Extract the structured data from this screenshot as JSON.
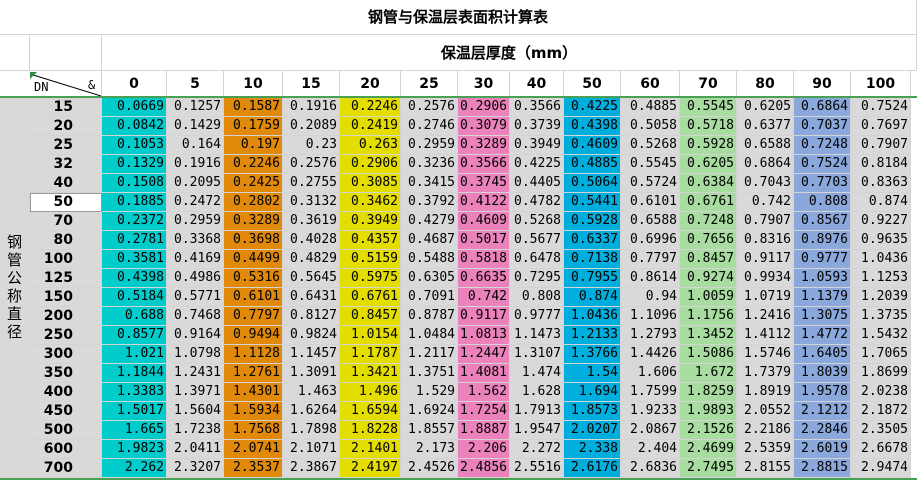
{
  "title": "钢管与保温层表面积计算表",
  "thickness_header": "保温层厚度（mm）",
  "corner": {
    "left_label": "DN",
    "right_label": "&"
  },
  "row_group_label": "钢管公称直径",
  "columns": [
    "0",
    "5",
    "10",
    "15",
    "20",
    "25",
    "30",
    "40",
    "50",
    "60",
    "70",
    "80",
    "90",
    "100"
  ],
  "column_colors": [
    "#00cccc",
    "#d9d9d9",
    "#e0890a",
    "#d9d9d9",
    "#e3dd00",
    "#d9d9d9",
    "#ec82bc",
    "#d9d9d9",
    "#00aedd",
    "#d9d9d9",
    "#a8dca0",
    "#d9d9d9",
    "#8aa8dc",
    "#d9d9d9"
  ],
  "selected_row": "50",
  "rows": [
    {
      "dn": "15",
      "values": [
        "0.0669",
        "0.1257",
        "0.1587",
        "0.1916",
        "0.2246",
        "0.2576",
        "0.2906",
        "0.3566",
        "0.4225",
        "0.4885",
        "0.5545",
        "0.6205",
        "0.6864",
        "0.7524"
      ]
    },
    {
      "dn": "20",
      "values": [
        "0.0842",
        "0.1429",
        "0.1759",
        "0.2089",
        "0.2419",
        "0.2746",
        "0.3079",
        "0.3739",
        "0.4398",
        "0.5058",
        "0.5718",
        "0.6377",
        "0.7037",
        "0.7697"
      ]
    },
    {
      "dn": "25",
      "values": [
        "0.1053",
        "0.164",
        "0.197",
        "0.23",
        "0.263",
        "0.2959",
        "0.3289",
        "0.3949",
        "0.4609",
        "0.5268",
        "0.5928",
        "0.6588",
        "0.7248",
        "0.7907"
      ]
    },
    {
      "dn": "32",
      "values": [
        "0.1329",
        "0.1916",
        "0.2246",
        "0.2576",
        "0.2906",
        "0.3236",
        "0.3566",
        "0.4225",
        "0.4885",
        "0.5545",
        "0.6205",
        "0.6864",
        "0.7524",
        "0.8184"
      ]
    },
    {
      "dn": "40",
      "values": [
        "0.1508",
        "0.2095",
        "0.2425",
        "0.2755",
        "0.3085",
        "0.3415",
        "0.3745",
        "0.4405",
        "0.5064",
        "0.5724",
        "0.6384",
        "0.7043",
        "0.7703",
        "0.8363"
      ]
    },
    {
      "dn": "50",
      "values": [
        "0.1885",
        "0.2472",
        "0.2802",
        "0.3132",
        "0.3462",
        "0.3792",
        "0.4122",
        "0.4782",
        "0.5441",
        "0.6101",
        "0.6761",
        "0.742",
        "0.808",
        "0.874"
      ]
    },
    {
      "dn": "70",
      "values": [
        "0.2372",
        "0.2959",
        "0.3289",
        "0.3619",
        "0.3949",
        "0.4279",
        "0.4609",
        "0.5268",
        "0.5928",
        "0.6588",
        "0.7248",
        "0.7907",
        "0.8567",
        "0.9227"
      ]
    },
    {
      "dn": "80",
      "values": [
        "0.2781",
        "0.3368",
        "0.3698",
        "0.4028",
        "0.4357",
        "0.4687",
        "0.5017",
        "0.5677",
        "0.6337",
        "0.6996",
        "0.7656",
        "0.8316",
        "0.8976",
        "0.9635"
      ]
    },
    {
      "dn": "100",
      "values": [
        "0.3581",
        "0.4169",
        "0.4499",
        "0.4829",
        "0.5159",
        "0.5488",
        "0.5818",
        "0.6478",
        "0.7138",
        "0.7797",
        "0.8457",
        "0.9117",
        "0.9777",
        "1.0436"
      ]
    },
    {
      "dn": "125",
      "values": [
        "0.4398",
        "0.4986",
        "0.5316",
        "0.5645",
        "0.5975",
        "0.6305",
        "0.6635",
        "0.7295",
        "0.7955",
        "0.8614",
        "0.9274",
        "0.9934",
        "1.0593",
        "1.1253"
      ]
    },
    {
      "dn": "150",
      "values": [
        "0.5184",
        "0.5771",
        "0.6101",
        "0.6431",
        "0.6761",
        "0.7091",
        "0.742",
        "0.808",
        "0.874",
        "0.94",
        "1.0059",
        "1.0719",
        "1.1379",
        "1.2039"
      ]
    },
    {
      "dn": "200",
      "values": [
        "0.688",
        "0.7468",
        "0.7797",
        "0.8127",
        "0.8457",
        "0.8787",
        "0.9117",
        "0.9777",
        "1.0436",
        "1.1096",
        "1.1756",
        "1.2416",
        "1.3075",
        "1.3735"
      ]
    },
    {
      "dn": "250",
      "values": [
        "0.8577",
        "0.9164",
        "0.9494",
        "0.9824",
        "1.0154",
        "1.0484",
        "1.0813",
        "1.1473",
        "1.2133",
        "1.2793",
        "1.3452",
        "1.4112",
        "1.4772",
        "1.5432"
      ]
    },
    {
      "dn": "300",
      "values": [
        "1.021",
        "1.0798",
        "1.1128",
        "1.1457",
        "1.1787",
        "1.2117",
        "1.2447",
        "1.3107",
        "1.3766",
        "1.4426",
        "1.5086",
        "1.5746",
        "1.6405",
        "1.7065"
      ]
    },
    {
      "dn": "350",
      "values": [
        "1.1844",
        "1.2431",
        "1.2761",
        "1.3091",
        "1.3421",
        "1.3751",
        "1.4081",
        "1.474",
        "1.54",
        "1.606",
        "1.672",
        "1.7379",
        "1.8039",
        "1.8699"
      ]
    },
    {
      "dn": "400",
      "values": [
        "1.3383",
        "1.3971",
        "1.4301",
        "1.463",
        "1.496",
        "1.529",
        "1.562",
        "1.628",
        "1.694",
        "1.7599",
        "1.8259",
        "1.8919",
        "1.9578",
        "2.0238"
      ]
    },
    {
      "dn": "450",
      "values": [
        "1.5017",
        "1.5604",
        "1.5934",
        "1.6264",
        "1.6594",
        "1.6924",
        "1.7254",
        "1.7913",
        "1.8573",
        "1.9233",
        "1.9893",
        "2.0552",
        "2.1212",
        "2.1872"
      ]
    },
    {
      "dn": "500",
      "values": [
        "1.665",
        "1.7238",
        "1.7568",
        "1.7898",
        "1.8228",
        "1.8557",
        "1.8887",
        "1.9547",
        "2.0207",
        "2.0867",
        "2.1526",
        "2.2186",
        "2.2846",
        "2.3505"
      ]
    },
    {
      "dn": "600",
      "values": [
        "1.9823",
        "2.0411",
        "2.0741",
        "2.1071",
        "2.1401",
        "2.173",
        "2.206",
        "2.272",
        "2.338",
        "2.404",
        "2.4699",
        "2.5359",
        "2.6019",
        "2.6678"
      ]
    },
    {
      "dn": "700",
      "values": [
        "2.262",
        "2.3207",
        "2.3537",
        "2.3867",
        "2.4197",
        "2.4526",
        "2.4856",
        "2.5516",
        "2.6176",
        "2.6836",
        "2.7495",
        "2.8155",
        "2.8815",
        "2.9474"
      ]
    }
  ]
}
